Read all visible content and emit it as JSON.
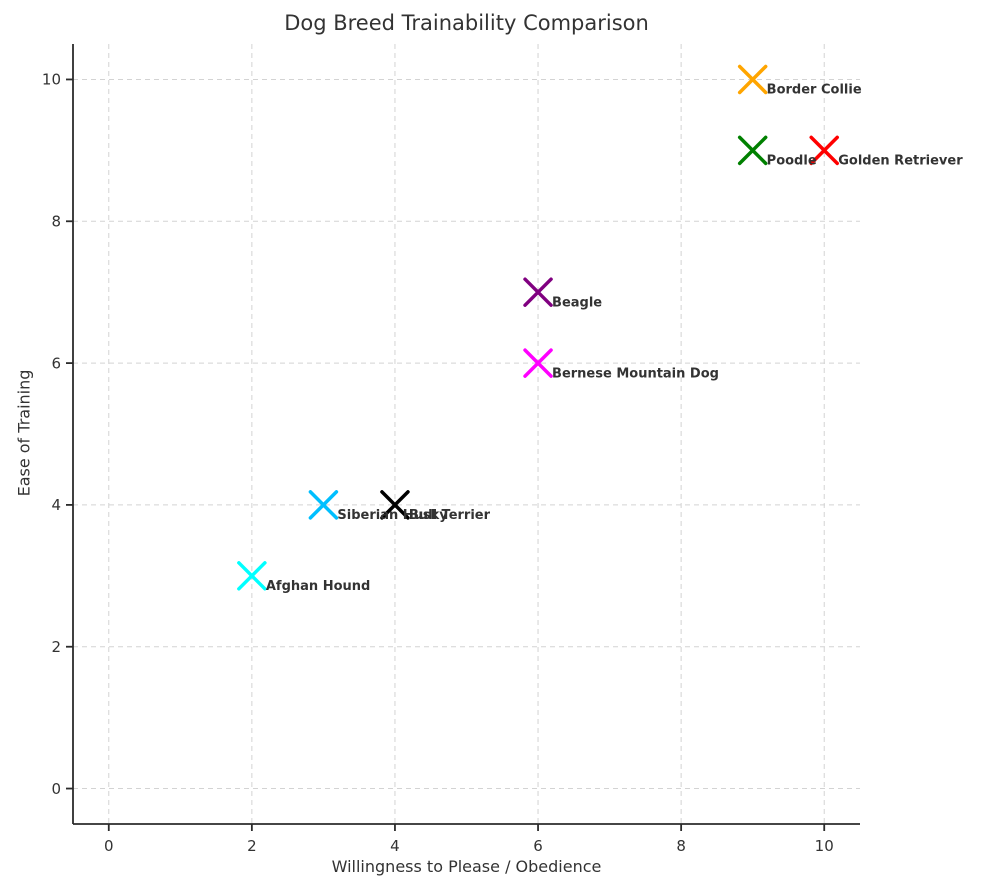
{
  "chart_data": {
    "type": "scatter",
    "title": "Dog Breed Trainability Comparison",
    "xlabel": "Willingness to Please / Obedience",
    "ylabel": "Ease of Training",
    "xlim": [
      -0.5,
      10.5
    ],
    "ylim": [
      -0.5,
      10.5
    ],
    "xticks": [
      0,
      2,
      4,
      6,
      8,
      10
    ],
    "yticks": [
      0,
      2,
      4,
      6,
      8,
      10
    ],
    "grid": true,
    "legend": "none",
    "marker": "x",
    "points": [
      {
        "label": "Border Collie",
        "x": 9,
        "y": 10,
        "color": "#FFA500"
      },
      {
        "label": "Poodle",
        "x": 9,
        "y": 9,
        "color": "#008000"
      },
      {
        "label": "Golden Retriever",
        "x": 10,
        "y": 9,
        "color": "#FF0000"
      },
      {
        "label": "Beagle",
        "x": 6,
        "y": 7,
        "color": "#800080"
      },
      {
        "label": "Bernese Mountain Dog",
        "x": 6,
        "y": 6,
        "color": "#FF00FF"
      },
      {
        "label": "Siberian Husky",
        "x": 3,
        "y": 4,
        "color": "#00BFFF"
      },
      {
        "label": "Bull Terrier",
        "x": 4,
        "y": 4,
        "color": "#000000"
      },
      {
        "label": "Afghan Hound",
        "x": 2,
        "y": 3,
        "color": "#00FFFF"
      }
    ]
  },
  "style": {
    "text_color": "#333333",
    "grid_color": "#d3d3d3",
    "grid_dash": "5 4",
    "spine_color": "#2b2b2b",
    "background": "#ffffff"
  }
}
